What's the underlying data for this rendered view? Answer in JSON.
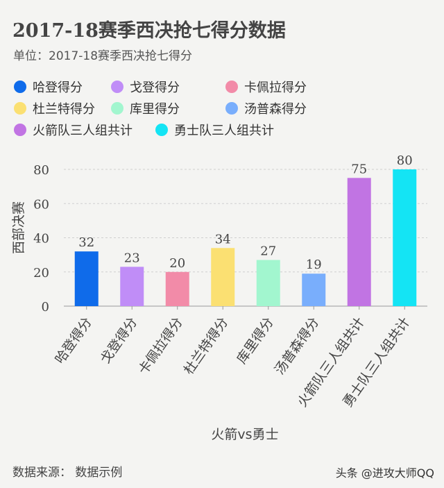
{
  "page": {
    "title": "2017-18赛季西决抢七得分数据",
    "subtitle": "单位：2017-18赛季西决抢七得分",
    "source": "数据来源：  数据示例",
    "watermark": "头条 @进攻大师QQ"
  },
  "chart_data": {
    "type": "bar",
    "categories": [
      "哈登得分",
      "戈登得分",
      "卡佩拉得分",
      "杜兰特得分",
      "库里得分",
      "汤普森得分",
      "火箭队三人组共计",
      "勇士队三人组共计"
    ],
    "values": [
      32,
      23,
      20,
      34,
      27,
      19,
      75,
      80
    ],
    "colors": [
      "#0f6bea",
      "#c08df7",
      "#f28ba8",
      "#fbe072",
      "#a2f6cf",
      "#79aefc",
      "#c174e3",
      "#14e4f4"
    ],
    "xlabel": "火箭vs勇士",
    "ylabel": "西部决赛",
    "ylim": [
      0,
      80
    ],
    "yticks": [
      0,
      20,
      40,
      60,
      80
    ],
    "grid": true,
    "legend_placement": "top"
  }
}
